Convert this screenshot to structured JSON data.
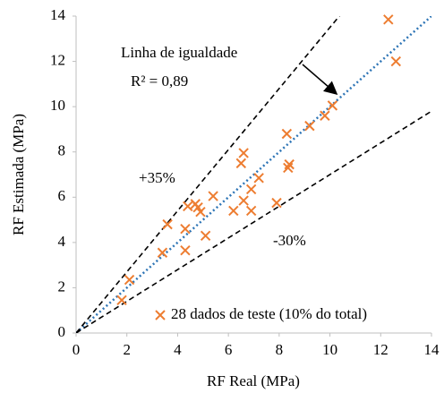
{
  "chart_data": {
    "type": "scatter",
    "x_label": "RF Real (MPa)",
    "y_label": "RF Estimada (MPa)",
    "xlim": [
      0,
      14
    ],
    "ylim": [
      0,
      14
    ],
    "xticks": [
      0,
      2,
      4,
      6,
      8,
      10,
      12,
      14
    ],
    "yticks": [
      0,
      2,
      4,
      6,
      8,
      10,
      12,
      14
    ],
    "grid": false,
    "series": [
      {
        "name": "28 dados de teste (10% do total)",
        "color": "#ed7d31",
        "x": [
          12.3,
          12.6,
          10.1,
          9.8,
          9.2,
          8.3,
          8.4,
          8.35,
          7.9,
          6.6,
          6.5,
          7.2,
          6.9,
          6.9,
          6.6,
          6.2,
          5.4,
          4.7,
          4.4,
          4.8,
          4.9,
          5.1,
          4.3,
          3.6,
          3.4,
          4.3,
          2.1,
          1.8
        ],
        "values": [
          13.85,
          12.0,
          10.05,
          9.6,
          9.15,
          8.8,
          7.45,
          7.3,
          5.75,
          7.95,
          7.5,
          6.85,
          6.35,
          5.4,
          5.85,
          5.4,
          6.05,
          5.7,
          5.6,
          5.55,
          5.35,
          4.3,
          4.6,
          4.8,
          3.55,
          3.65,
          2.35,
          1.45
        ]
      }
    ],
    "legend_position": "lower right",
    "reference_lines": [
      {
        "label": "Linha de igualdade",
        "slope": 1,
        "color": "#2e75b6",
        "style": "dotted"
      },
      {
        "label": "+35%",
        "slope": 1.35,
        "color": "#000000",
        "style": "dashed"
      },
      {
        "label": "-30%",
        "slope": 0.7,
        "color": "#000000",
        "style": "dashed"
      }
    ],
    "annotations": [
      "R² = 0,89"
    ]
  }
}
